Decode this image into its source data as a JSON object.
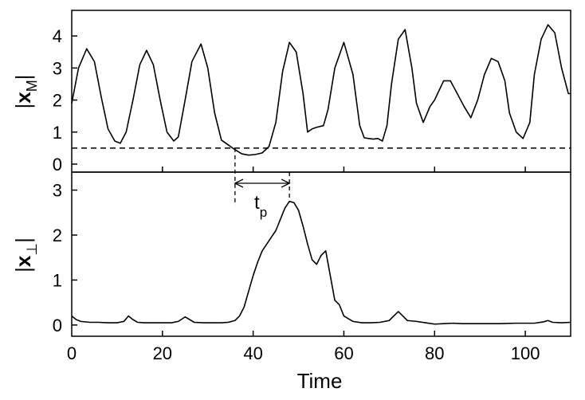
{
  "chart_data": [
    {
      "type": "line",
      "panel": "top",
      "ylabel": "|x_M|",
      "ylabel_parts": {
        "bar": "|",
        "var": "x",
        "sub": "M"
      },
      "xlim": [
        0,
        110
      ],
      "ylim": [
        -0.25,
        4.8
      ],
      "yticks": [
        0,
        1,
        2,
        3,
        4
      ],
      "xticks": [
        0,
        20,
        40,
        60,
        80,
        100
      ],
      "threshold": 0.5,
      "series": [
        {
          "x": [
            0,
            1.5,
            3.3,
            5,
            6.5,
            8,
            9.5,
            10.7,
            12,
            13.5,
            15,
            16.5,
            18,
            19.5,
            21,
            22.5,
            23.5,
            25,
            26.5,
            28.5,
            30,
            31.5,
            33,
            34.5,
            36,
            37.5,
            39,
            40.5,
            42,
            43.5,
            45,
            46.5,
            48,
            49.5,
            51,
            52,
            53,
            54,
            55.5,
            56.5,
            58,
            60,
            62,
            63.5,
            64.5,
            65.5,
            66.5,
            67.5,
            68.5,
            69.5,
            70.5,
            72,
            73.5,
            75,
            76,
            77.5,
            79,
            80,
            81,
            82,
            83.5,
            85,
            86.5,
            88,
            89.5,
            91,
            92.5,
            94,
            95.5,
            96.5,
            98,
            99.5,
            101,
            102,
            103.5,
            105,
            106.5,
            108,
            109.5,
            110
          ],
          "y": [
            1.9,
            3.0,
            3.6,
            3.2,
            2.1,
            1.1,
            0.72,
            0.65,
            1.0,
            2.0,
            3.1,
            3.55,
            3.1,
            2.0,
            1.0,
            0.72,
            0.85,
            2.0,
            3.2,
            3.75,
            3.0,
            1.6,
            0.75,
            0.6,
            0.45,
            0.32,
            0.28,
            0.3,
            0.35,
            0.55,
            1.3,
            2.9,
            3.8,
            3.5,
            2.2,
            1.0,
            1.1,
            1.15,
            1.2,
            1.7,
            3.0,
            3.8,
            2.8,
            1.2,
            0.82,
            0.8,
            0.78,
            0.8,
            0.72,
            1.2,
            2.5,
            3.9,
            4.2,
            3.0,
            1.9,
            1.3,
            1.8,
            2.0,
            2.3,
            2.6,
            2.6,
            2.2,
            1.8,
            1.45,
            2.0,
            2.8,
            3.3,
            3.2,
            2.6,
            1.6,
            1.0,
            0.8,
            1.3,
            2.8,
            3.9,
            4.35,
            4.1,
            3.0,
            2.2,
            2.2
          ]
        }
      ]
    },
    {
      "type": "line",
      "panel": "bottom",
      "xlabel": "Time",
      "ylabel": "|x_⊥|",
      "ylabel_parts": {
        "bar": "|",
        "var": "x",
        "sub": "⊥"
      },
      "xlim": [
        0,
        110
      ],
      "ylim": [
        -0.25,
        3.4
      ],
      "yticks": [
        0,
        1,
        2,
        3
      ],
      "xticks": [
        0,
        20,
        40,
        60,
        80,
        100
      ],
      "xtick_labels": [
        "0",
        "20",
        "40",
        "60",
        "80",
        "100"
      ],
      "series": [
        {
          "x": [
            0,
            1,
            2,
            4,
            6,
            8,
            10,
            11.5,
            12.5,
            13.5,
            14.5,
            16,
            18,
            20,
            22,
            23.5,
            25,
            26,
            27,
            29,
            31,
            33,
            34.5,
            36,
            37,
            38,
            39,
            40,
            41,
            42,
            43,
            44,
            45,
            46,
            47,
            48,
            49,
            50,
            51,
            52,
            53,
            54,
            55,
            56,
            57,
            58,
            59,
            60,
            62,
            64,
            66,
            68,
            70,
            71,
            72,
            73,
            74,
            76,
            78,
            80,
            82,
            84,
            86,
            88,
            90,
            94,
            98,
            102,
            104,
            105,
            106,
            108,
            110
          ],
          "y": [
            0.2,
            0.12,
            0.08,
            0.06,
            0.06,
            0.05,
            0.05,
            0.08,
            0.2,
            0.12,
            0.06,
            0.05,
            0.05,
            0.05,
            0.05,
            0.08,
            0.18,
            0.12,
            0.06,
            0.05,
            0.05,
            0.05,
            0.06,
            0.1,
            0.2,
            0.4,
            0.75,
            1.1,
            1.4,
            1.65,
            1.8,
            1.95,
            2.1,
            2.35,
            2.6,
            2.75,
            2.72,
            2.55,
            2.2,
            1.8,
            1.45,
            1.35,
            1.55,
            1.65,
            1.1,
            0.55,
            0.45,
            0.2,
            0.08,
            0.05,
            0.05,
            0.06,
            0.1,
            0.2,
            0.3,
            0.2,
            0.1,
            0.08,
            0.05,
            0.02,
            0.03,
            0.04,
            0.03,
            0.03,
            0.03,
            0.03,
            0.04,
            0.04,
            0.07,
            0.1,
            0.06,
            0.05,
            0.06
          ]
        }
      ]
    }
  ],
  "annotation": {
    "t_start": 36,
    "t_end": 48,
    "label_main": "t",
    "label_sub": "p"
  }
}
